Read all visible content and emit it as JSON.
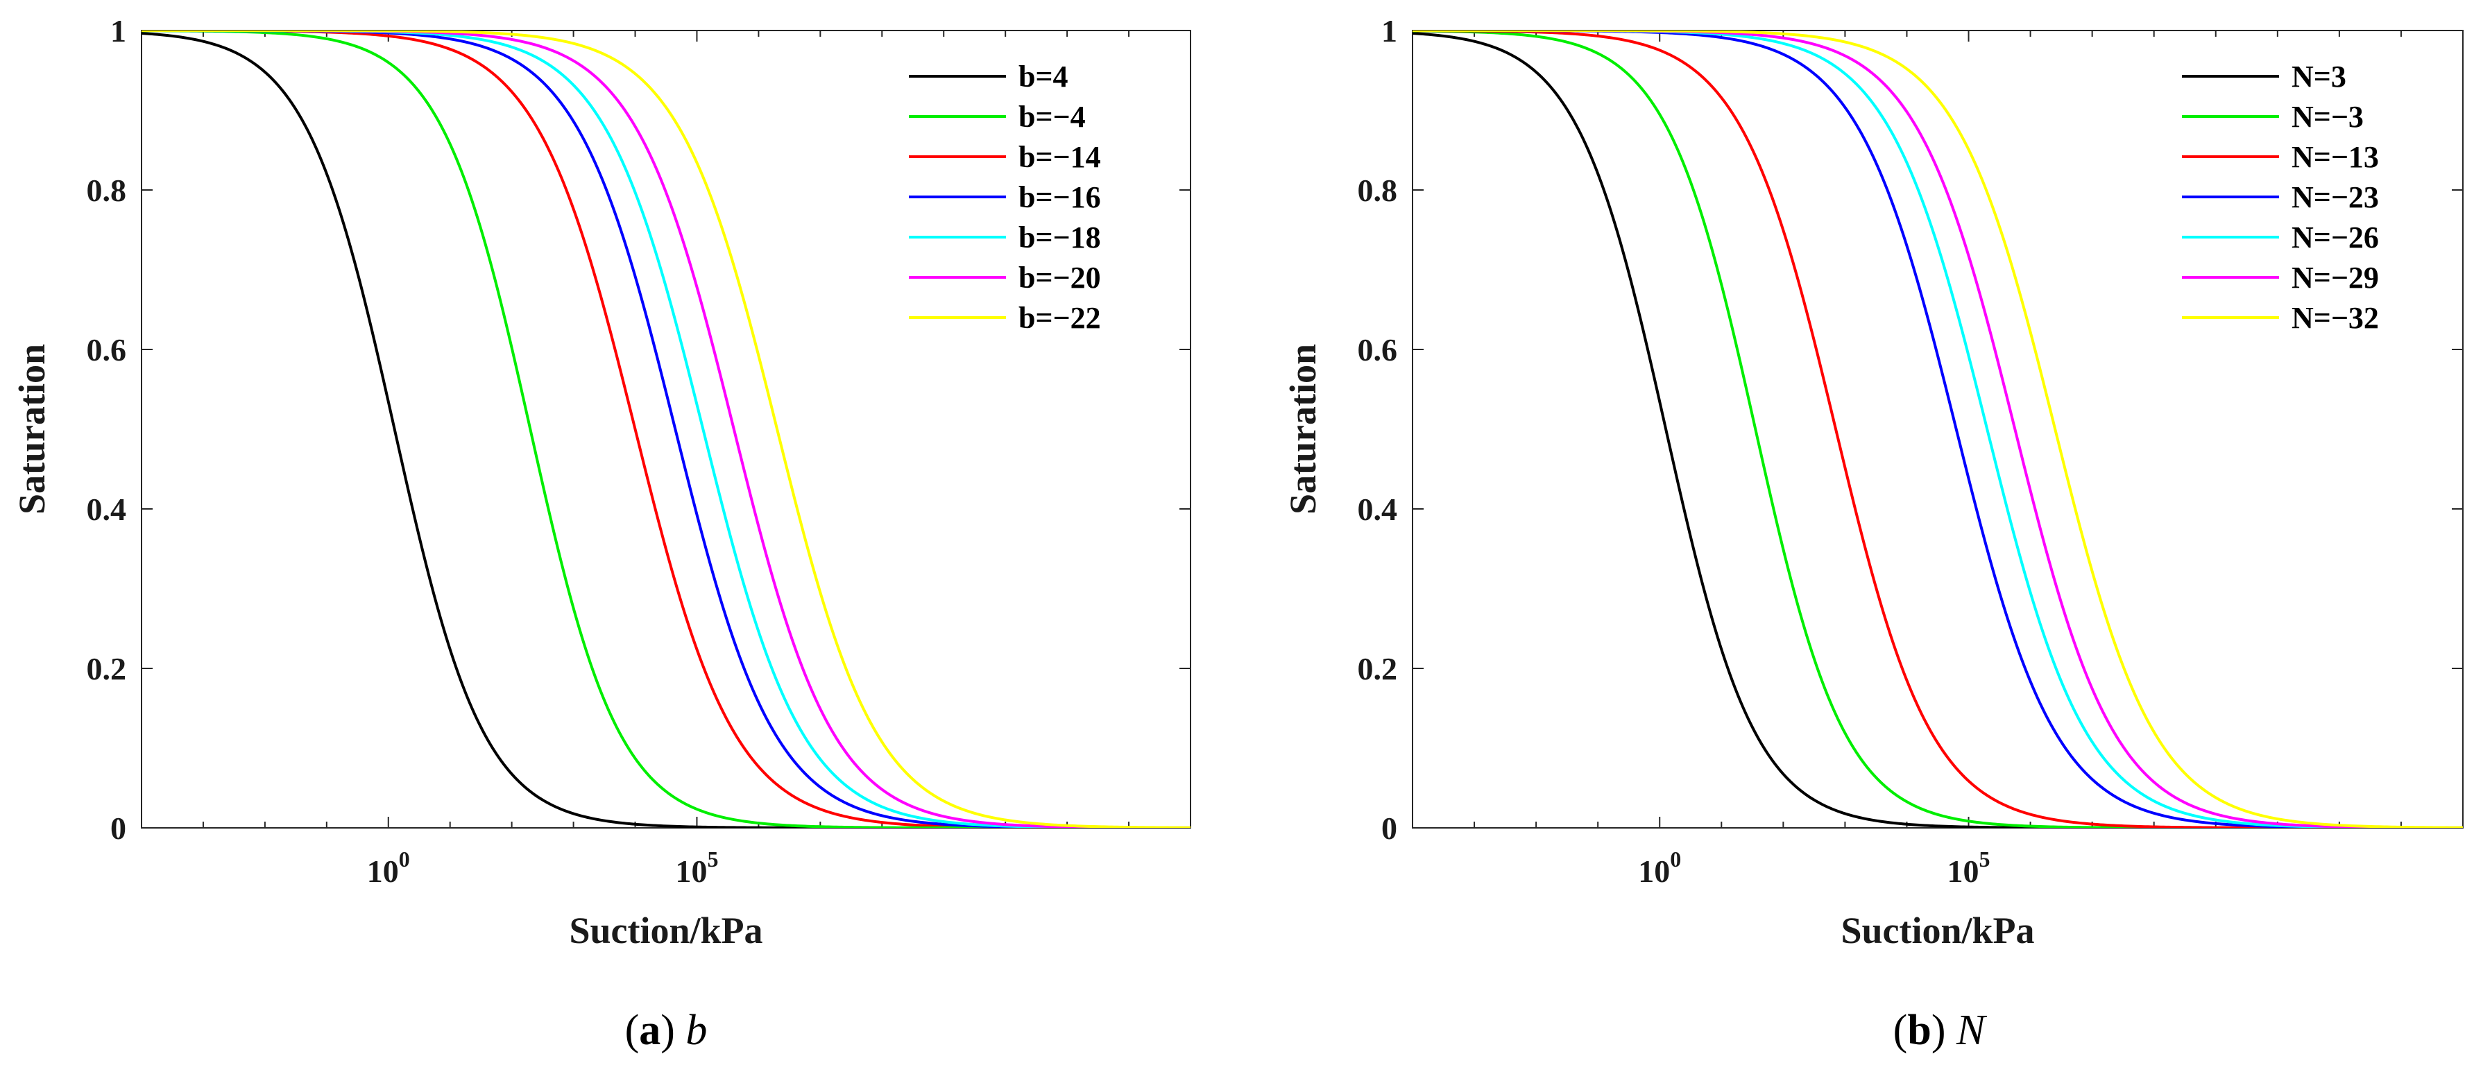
{
  "chart_data": [
    {
      "type": "line",
      "panel": "a",
      "caption_letter": "a",
      "caption_symbol": "b",
      "xlabel": "Suction/kPa",
      "ylabel": "Saturation",
      "xscale": "log",
      "xlim_log10": [
        -4,
        13
      ],
      "ylim": [
        0,
        1
      ],
      "xticks": [
        {
          "base": "10",
          "exp": "0",
          "log10": 0
        },
        {
          "base": "10",
          "exp": "5",
          "log10": 5
        }
      ],
      "yticks": [
        "0",
        "0.2",
        "0.4",
        "0.6",
        "0.8",
        "1"
      ],
      "legend_position": "top-right",
      "series": [
        {
          "name": "b=4",
          "color": "#000000",
          "midpoint_log10": 0.1,
          "slope": 0.6
        },
        {
          "name": "b=−14",
          "color": "#ff0000",
          "midpoint_log10": 4.0,
          "slope": 0.54
        },
        {
          "name": "b=−4",
          "color": "#00ee00",
          "midpoint_log10": 2.3,
          "slope": 0.6
        },
        {
          "name": "b=−16",
          "color": "#0000ff",
          "midpoint_log10": 4.65,
          "slope": 0.54
        },
        {
          "name": "b=−18",
          "color": "#00ffff",
          "midpoint_log10": 5.1,
          "slope": 0.54
        },
        {
          "name": "b=−20",
          "color": "#ff00ff",
          "midpoint_log10": 5.6,
          "slope": 0.54
        },
        {
          "name": "b=−22",
          "color": "#ffff00",
          "midpoint_log10": 6.3,
          "slope": 0.54
        }
      ]
    },
    {
      "type": "line",
      "panel": "b",
      "caption_letter": "b",
      "caption_symbol": "N",
      "xlabel": "Suction/kPa",
      "ylabel": "Saturation",
      "xscale": "log",
      "xlim_log10": [
        -4,
        13
      ],
      "ylim": [
        0,
        1
      ],
      "xticks": [
        {
          "base": "10",
          "exp": "0",
          "log10": 0
        },
        {
          "base": "10",
          "exp": "5",
          "log10": 5
        }
      ],
      "yticks": [
        "0",
        "0.2",
        "0.4",
        "0.6",
        "0.8",
        "1"
      ],
      "legend_position": "top-right",
      "series": [
        {
          "name": "N=3",
          "color": "#000000",
          "midpoint_log10": 0.1,
          "slope": 0.6
        },
        {
          "name": "N=−3",
          "color": "#00ee00",
          "midpoint_log10": 1.55,
          "slope": 0.6
        },
        {
          "name": "N=−13",
          "color": "#ff0000",
          "midpoint_log10": 2.85,
          "slope": 0.56
        },
        {
          "name": "N=−23",
          "color": "#0000ff",
          "midpoint_log10": 4.8,
          "slope": 0.54
        },
        {
          "name": "N=−26",
          "color": "#00ffff",
          "midpoint_log10": 5.3,
          "slope": 0.54
        },
        {
          "name": "N=−29",
          "color": "#ff00ff",
          "midpoint_log10": 5.75,
          "slope": 0.54
        },
        {
          "name": "N=−32",
          "color": "#ffff00",
          "midpoint_log10": 6.4,
          "slope": 0.54
        }
      ]
    }
  ]
}
